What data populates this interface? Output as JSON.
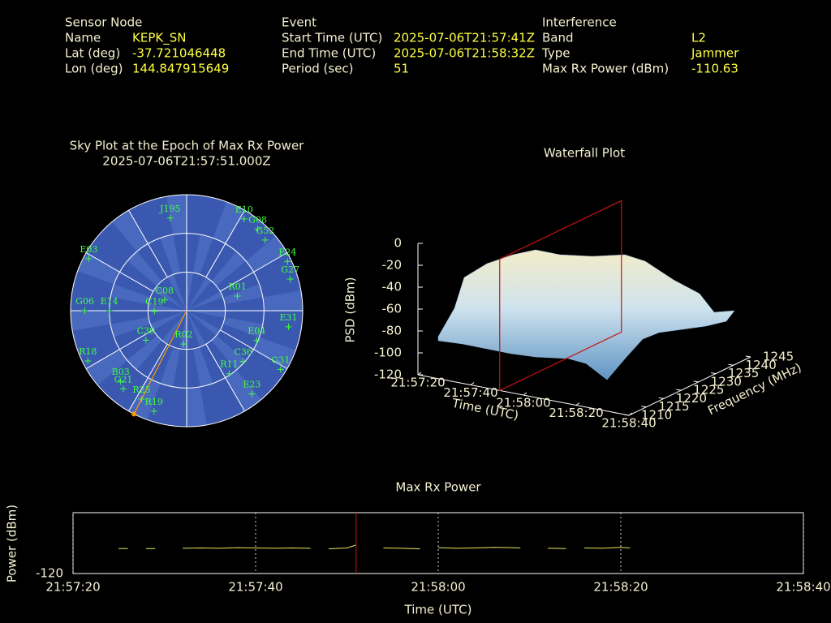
{
  "header": [
    {
      "title": "Sensor Node",
      "rows": [
        {
          "label": "Name",
          "value": "KEPK_SN"
        },
        {
          "label": "Lat (deg)",
          "value": "-37.721046448"
        },
        {
          "label": "Lon (deg)",
          "value": "144.847915649"
        }
      ]
    },
    {
      "title": "Event",
      "rows": [
        {
          "label": "Start Time (UTC)",
          "value": "2025-07-06T21:57:41Z"
        },
        {
          "label": "End Time (UTC)",
          "value": "2025-07-06T21:58:32Z"
        },
        {
          "label": "Period (sec)",
          "value": "51"
        }
      ]
    },
    {
      "title": "Interference",
      "rows": [
        {
          "label": "Band",
          "value": "L2"
        },
        {
          "label": "Type",
          "value": "Jammer"
        },
        {
          "label": "Max Rx Power (dBm)",
          "value": "-110.63"
        }
      ]
    }
  ],
  "chart_data": [
    {
      "type": "sky",
      "title": "Sky Plot at the Epoch of Max Rx Power",
      "subtitle": "2025-07-06T21:57:51.000Z",
      "categories": [
        "J195",
        "E10",
        "G08",
        "G52",
        "E24",
        "G27",
        "E31",
        "G31",
        "E23",
        "R19",
        "R25",
        "G21",
        "R18",
        "G06",
        "E14",
        "E03",
        "R01",
        "R02",
        "C36",
        "C08",
        "E04",
        "R11",
        "B03",
        "C39",
        "C19"
      ],
      "azimuth": [
        350,
        32,
        41,
        48,
        64,
        73,
        99,
        122,
        142,
        198,
        207,
        219,
        243,
        270,
        270,
        298,
        74,
        185,
        132,
        296,
        113,
        146,
        223,
        234,
        269
      ],
      "elevation": [
        17,
        6,
        6,
        8,
        3,
        6,
        10,
        4,
        8,
        8,
        13,
        12,
        4,
        11,
        30,
        4,
        49,
        64,
        31,
        71,
        31,
        31,
        15,
        51,
        65
      ],
      "rlim": [
        0,
        90
      ],
      "rticks": [
        0,
        30,
        60
      ],
      "interference_azimuth": 207,
      "color": "#40ff40",
      "background_color": "#3a58b0",
      "interference_color": "#ff9900"
    },
    {
      "type": "waterfall",
      "title": "Waterfall Plot",
      "xlabel": "Time (UTC)",
      "ylabel": "Frequency (MHz)",
      "zlabel": "PSD (dBm)",
      "xlim": [
        79040,
        79120
      ],
      "xticks": [
        {
          "value": 79040,
          "label": "21:57:20"
        },
        {
          "value": 79060,
          "label": "21:57:40"
        },
        {
          "value": 79080,
          "label": "21:58:00"
        },
        {
          "value": 79100,
          "label": "21:58:20"
        },
        {
          "value": 79120,
          "label": "21:58:40"
        }
      ],
      "ylim": [
        1210,
        1245
      ],
      "yticks": [
        1210,
        1215,
        1220,
        1225,
        1230,
        1235,
        1240,
        1245
      ],
      "zlim": [
        -120,
        0
      ],
      "zticks": [
        -120,
        -100,
        -80,
        -60,
        -40,
        -20,
        0
      ],
      "marker_x": 79071,
      "marker_color": "#cc1111"
    },
    {
      "type": "line",
      "title": "Max Rx Power",
      "xlabel": "Time (UTC)",
      "ylabel": "Power (dBm)",
      "xlim": [
        79040,
        79120
      ],
      "xticks": [
        {
          "value": 79040,
          "label": "21:57:20"
        },
        {
          "value": 79060,
          "label": "21:57:40"
        },
        {
          "value": 79080,
          "label": "21:58:00"
        },
        {
          "value": 79100,
          "label": "21:58:20"
        },
        {
          "value": 79120,
          "label": "21:58:40"
        }
      ],
      "ylim": [
        -120,
        -100
      ],
      "yticks": [
        -120
      ],
      "x": [
        79045,
        79046,
        79047,
        79048,
        79049,
        79050,
        79052,
        79054,
        79056,
        79058,
        79060,
        79062,
        79064,
        79066,
        79067,
        79068,
        79070,
        79071,
        79072,
        79074,
        79076,
        79078,
        79079,
        79080,
        79082,
        79084,
        79086,
        79088,
        79089,
        79090,
        79092,
        79094,
        79095,
        79096,
        79098,
        79100,
        79101
      ],
      "values": [
        -111.8,
        -111.8,
        null,
        -111.8,
        -111.8,
        null,
        -111.7,
        -111.6,
        -111.7,
        -111.5,
        -111.6,
        -111.7,
        -111.6,
        -111.7,
        null,
        -111.9,
        -111.6,
        -110.63,
        null,
        -111.6,
        -111.7,
        -111.9,
        null,
        -111.5,
        -111.7,
        -111.6,
        -111.4,
        -111.5,
        -111.6,
        null,
        -111.7,
        -111.8,
        null,
        -111.6,
        -111.7,
        -111.4,
        -111.6
      ],
      "color": "#e8e860",
      "marker_x": 79071,
      "marker_color": "#cc1111",
      "grid": true
    }
  ]
}
